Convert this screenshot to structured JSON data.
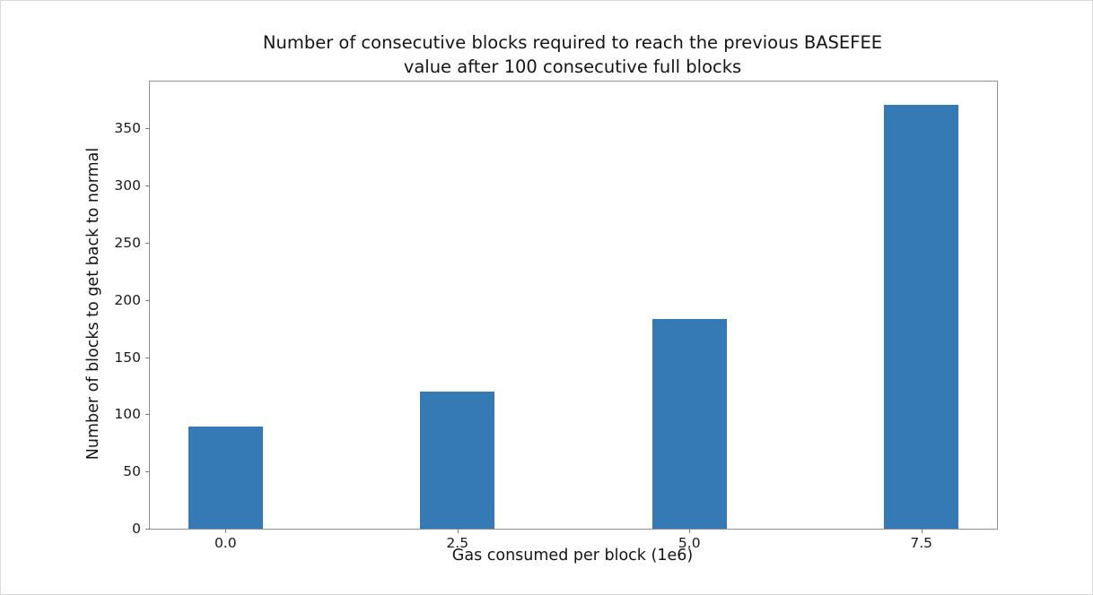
{
  "figure": {
    "background": "#ffffff",
    "border_color": "#d9d9d9"
  },
  "chart_data": {
    "type": "bar",
    "title": "Number of consecutive blocks required to reach the previous BASEFEE\nvalue after 100 consecutive full blocks",
    "x": [
      0.0,
      2.5,
      5.0,
      7.5
    ],
    "categories": [
      "0.0",
      "2.5",
      "5.0",
      "7.5"
    ],
    "values": [
      89,
      120,
      183,
      371
    ],
    "xlabel": "Gas consumed per block (1e6)",
    "ylabel": "Number of blocks to get back to normal",
    "xlim": [
      -0.815,
      8.315
    ],
    "ylim": [
      0,
      391
    ],
    "xticks": [
      0.0,
      2.5,
      5.0,
      7.5
    ],
    "xtick_labels": [
      "0.0",
      "2.5",
      "5.0",
      "7.5"
    ],
    "yticks": [
      0,
      50,
      100,
      150,
      200,
      250,
      300,
      350
    ],
    "bar_width": 0.8,
    "bar_color": "#3579b5",
    "grid": false,
    "legend": null
  }
}
